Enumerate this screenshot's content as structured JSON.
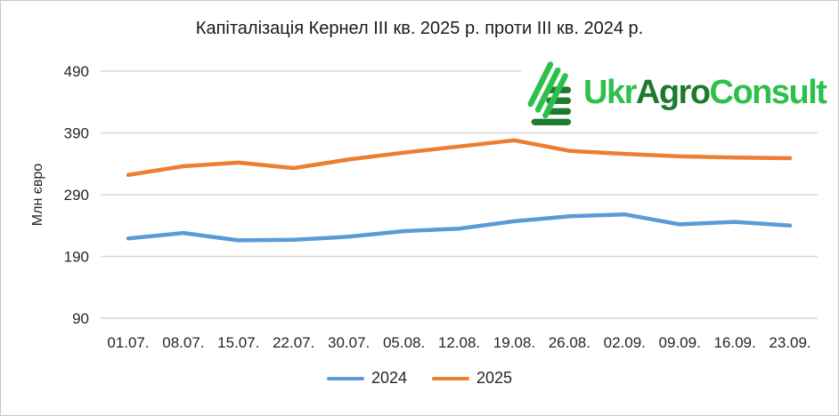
{
  "frame": {
    "border_color": "#c8c8c8",
    "background": "#ffffff"
  },
  "colors": {
    "gridline": "#d9d9d9",
    "axis_text": "#262626",
    "title_text": "#1a1a1a"
  },
  "logo": {
    "part1": "Ukr",
    "part2": "Agro",
    "part3": "Consult",
    "bright_green": "#2ec04c",
    "dark_green": "#1e7a2f"
  },
  "chart_data": {
    "type": "line",
    "title": "Капіталізація Кернел III кв. 2025 р. проти III кв. 2024 р.",
    "ylabel": "Млн євро",
    "xlabel": "",
    "categories": [
      "01.07.",
      "08.07.",
      "15.07.",
      "22.07.",
      "30.07.",
      "05.08.",
      "12.08.",
      "19.08.",
      "26.08.",
      "02.09.",
      "09.09.",
      "16.09.",
      "23.09."
    ],
    "series": [
      {
        "name": "2024",
        "color": "#5b9bd5",
        "values": [
          219,
          228,
          216,
          217,
          222,
          231,
          235,
          247,
          255,
          258,
          242,
          246,
          240
        ]
      },
      {
        "name": "2025",
        "color": "#ed7d31",
        "values": [
          322,
          336,
          342,
          333,
          347,
          358,
          368,
          378,
          361,
          356,
          352,
          350,
          349
        ]
      }
    ],
    "ylim": [
      90,
      490
    ],
    "yticks": [
      90,
      190,
      290,
      390,
      490
    ],
    "grid": "horizontal",
    "legend_position": "bottom"
  }
}
